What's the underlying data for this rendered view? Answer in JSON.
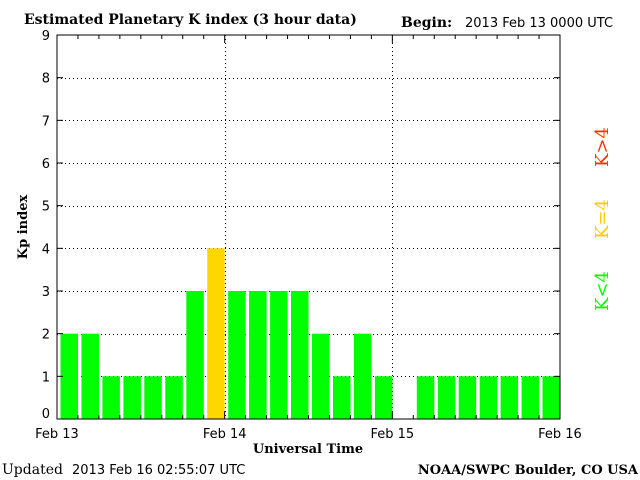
{
  "header": {
    "title": "Estimated Planetary K index (3 hour data)",
    "begin_label": "Begin:",
    "begin_value": "2013 Feb 13 0000 UTC"
  },
  "footer": {
    "updated_label": "Updated",
    "updated_value": "2013 Feb 16 02:55:07 UTC",
    "credit": "NOAA/SWPC Boulder, CO USA"
  },
  "legend": {
    "items": [
      {
        "label": "K<4",
        "color": "#00ff00"
      },
      {
        "label": "K=4",
        "color": "#ffcc00"
      },
      {
        "label": "K>4",
        "color": "#ff3300"
      }
    ]
  },
  "colors": {
    "below_4": "#00ff00",
    "equal_4": "#ffd700",
    "above_4": "#ff3300"
  },
  "chart_data": {
    "type": "bar",
    "xlabel": "Universal Time",
    "ylabel": "Kp index",
    "ylim": [
      0,
      9
    ],
    "yticks": [
      0,
      1,
      2,
      3,
      4,
      5,
      6,
      7,
      8,
      9
    ],
    "x_tick_labels": [
      "Feb 13",
      "Feb 14",
      "Feb 15",
      "Feb 16"
    ],
    "grid": "dotted, at every Kp level and at each day boundary",
    "interval_hours": 3,
    "values": [
      2,
      2,
      1,
      1,
      1,
      1,
      3,
      4,
      3,
      3,
      3,
      3,
      2,
      1,
      2,
      1,
      null,
      1,
      1,
      1,
      1,
      1,
      1,
      1
    ]
  }
}
